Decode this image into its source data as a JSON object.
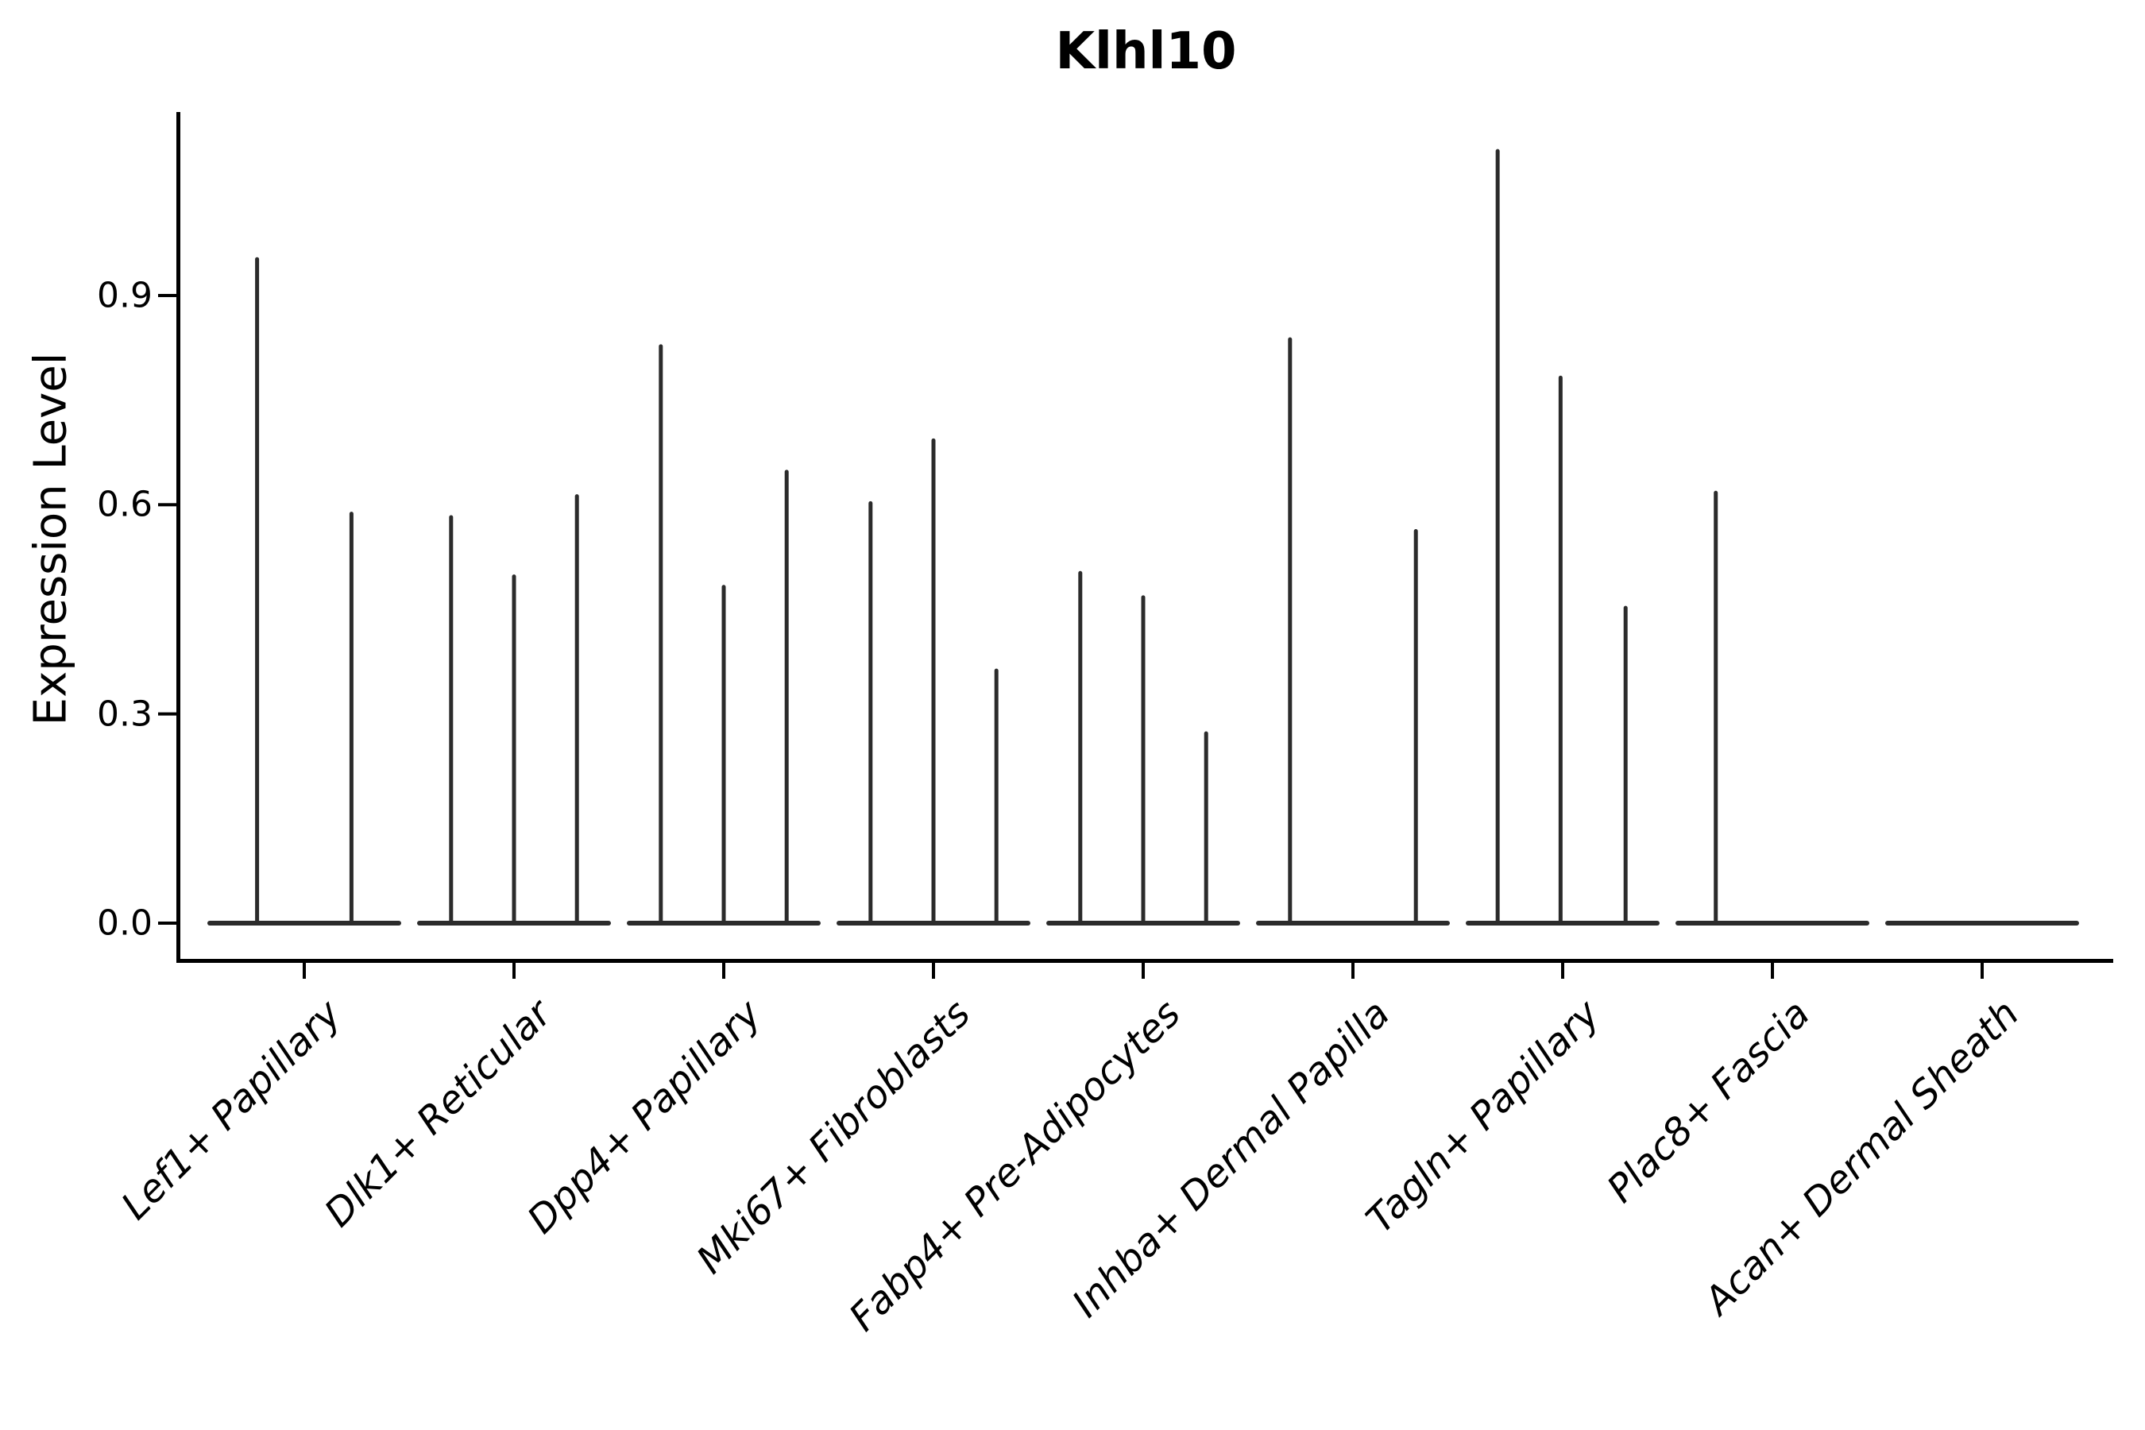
{
  "title": "Klhl10",
  "y_axis_label": "Expression Level",
  "chart_data": {
    "type": "violin",
    "title": "Klhl10",
    "xlabel": "",
    "ylabel": "Expression Level",
    "yticks": [
      "0.0",
      "0.3",
      "0.6",
      "0.9"
    ],
    "ytick_values": [
      0.0,
      0.3,
      0.6,
      0.9
    ],
    "ylim": [
      0.0,
      1.16
    ],
    "grid": false,
    "legend": "none",
    "description": "Needle-thin violins (nearly all cells at 0) grouped per cell type; spikes mark sub-violins reaching their max expression value",
    "categories": [
      "Lef1+ Papillary",
      "Dlk1+ Reticular",
      "Dpp4+ Papillary",
      "Mki67+ Fibroblasts",
      "Fabp4+ Pre-Adipocytes",
      "Inhba+ Dermal Papilla",
      "Tagln+ Papillary",
      "Plac8+ Fascia",
      "Acan+ Dermal Sheath"
    ],
    "violins": [
      {
        "category": "Lef1+ Papillary",
        "spikes": [
          {
            "offset": -0.225,
            "value": 0.955
          },
          {
            "offset": 0.225,
            "value": 0.59
          }
        ]
      },
      {
        "category": "Dlk1+ Reticular",
        "spikes": [
          {
            "offset": -0.3,
            "value": 0.585
          },
          {
            "offset": 0.0,
            "value": 0.5
          },
          {
            "offset": 0.3,
            "value": 0.615
          }
        ]
      },
      {
        "category": "Dpp4+ Papillary",
        "spikes": [
          {
            "offset": -0.3,
            "value": 0.83
          },
          {
            "offset": 0.0,
            "value": 0.485
          },
          {
            "offset": 0.3,
            "value": 0.65
          }
        ]
      },
      {
        "category": "Mki67+ Fibroblasts",
        "spikes": [
          {
            "offset": -0.3,
            "value": 0.605
          },
          {
            "offset": 0.0,
            "value": 0.695
          },
          {
            "offset": 0.3,
            "value": 0.365
          }
        ]
      },
      {
        "category": "Fabp4+ Pre-Adipocytes",
        "spikes": [
          {
            "offset": -0.3,
            "value": 0.505
          },
          {
            "offset": 0.0,
            "value": 0.47
          },
          {
            "offset": 0.3,
            "value": 0.275
          }
        ]
      },
      {
        "category": "Inhba+ Dermal Papilla",
        "spikes": [
          {
            "offset": -0.3,
            "value": 0.84
          },
          {
            "offset": 0.3,
            "value": 0.565
          }
        ]
      },
      {
        "category": "Tagln+ Papillary",
        "spikes": [
          {
            "offset": -0.31,
            "value": 1.11
          },
          {
            "offset": -0.01,
            "value": 0.785
          },
          {
            "offset": 0.3,
            "value": 0.455
          }
        ]
      },
      {
        "category": "Plac8+ Fascia",
        "spikes": [
          {
            "offset": -0.27,
            "value": 0.62
          }
        ]
      },
      {
        "category": "Acan+ Dermal Sheath",
        "spikes": []
      }
    ],
    "colors": {
      "violin_stroke": "#2b2b2b",
      "axis": "#000000",
      "text": "#000000",
      "background": "#ffffff"
    }
  }
}
